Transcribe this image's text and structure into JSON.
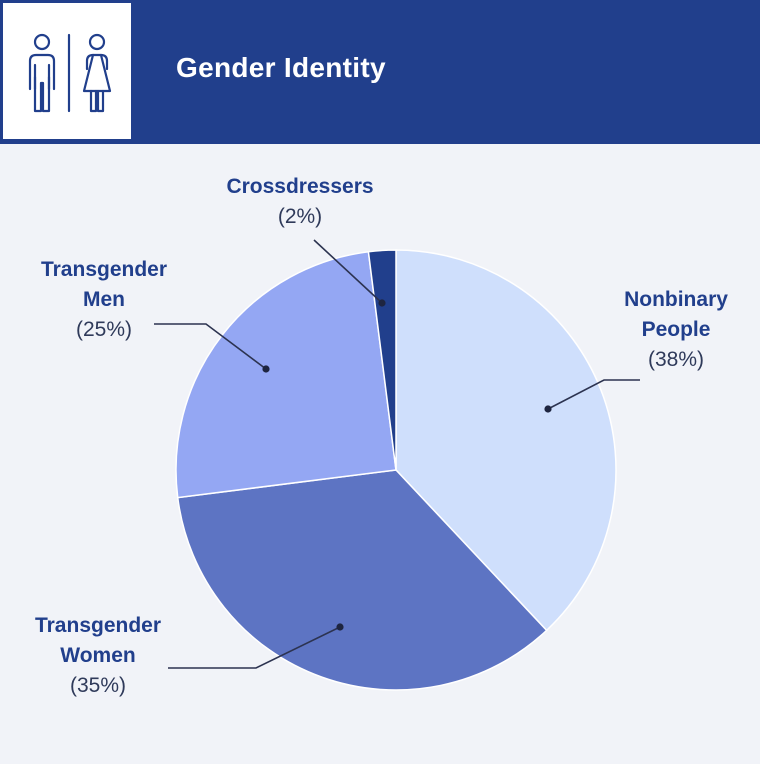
{
  "header": {
    "title": "Gender Identity",
    "icon": "restroom-icon",
    "background": "#213f8c"
  },
  "chart_data": {
    "type": "pie",
    "title": "Gender Identity",
    "slices": [
      {
        "label_lines": [
          "Nonbinary",
          "People"
        ],
        "percent_label": "(38%)",
        "value": 38,
        "color": "#cfdffc"
      },
      {
        "label_lines": [
          "Transgender",
          "Women"
        ],
        "percent_label": "(35%)",
        "value": 35,
        "color": "#5d74c3"
      },
      {
        "label_lines": [
          "Transgender",
          "Men"
        ],
        "percent_label": "(25%)",
        "value": 25,
        "color": "#94a7f3"
      },
      {
        "label_lines": [
          "Crossdressers"
        ],
        "percent_label": "(2%)",
        "value": 2,
        "color": "#213f8c"
      }
    ],
    "start_angle": "12 o'clock",
    "direction": "clockwise",
    "legend": "none (callout labels)"
  }
}
